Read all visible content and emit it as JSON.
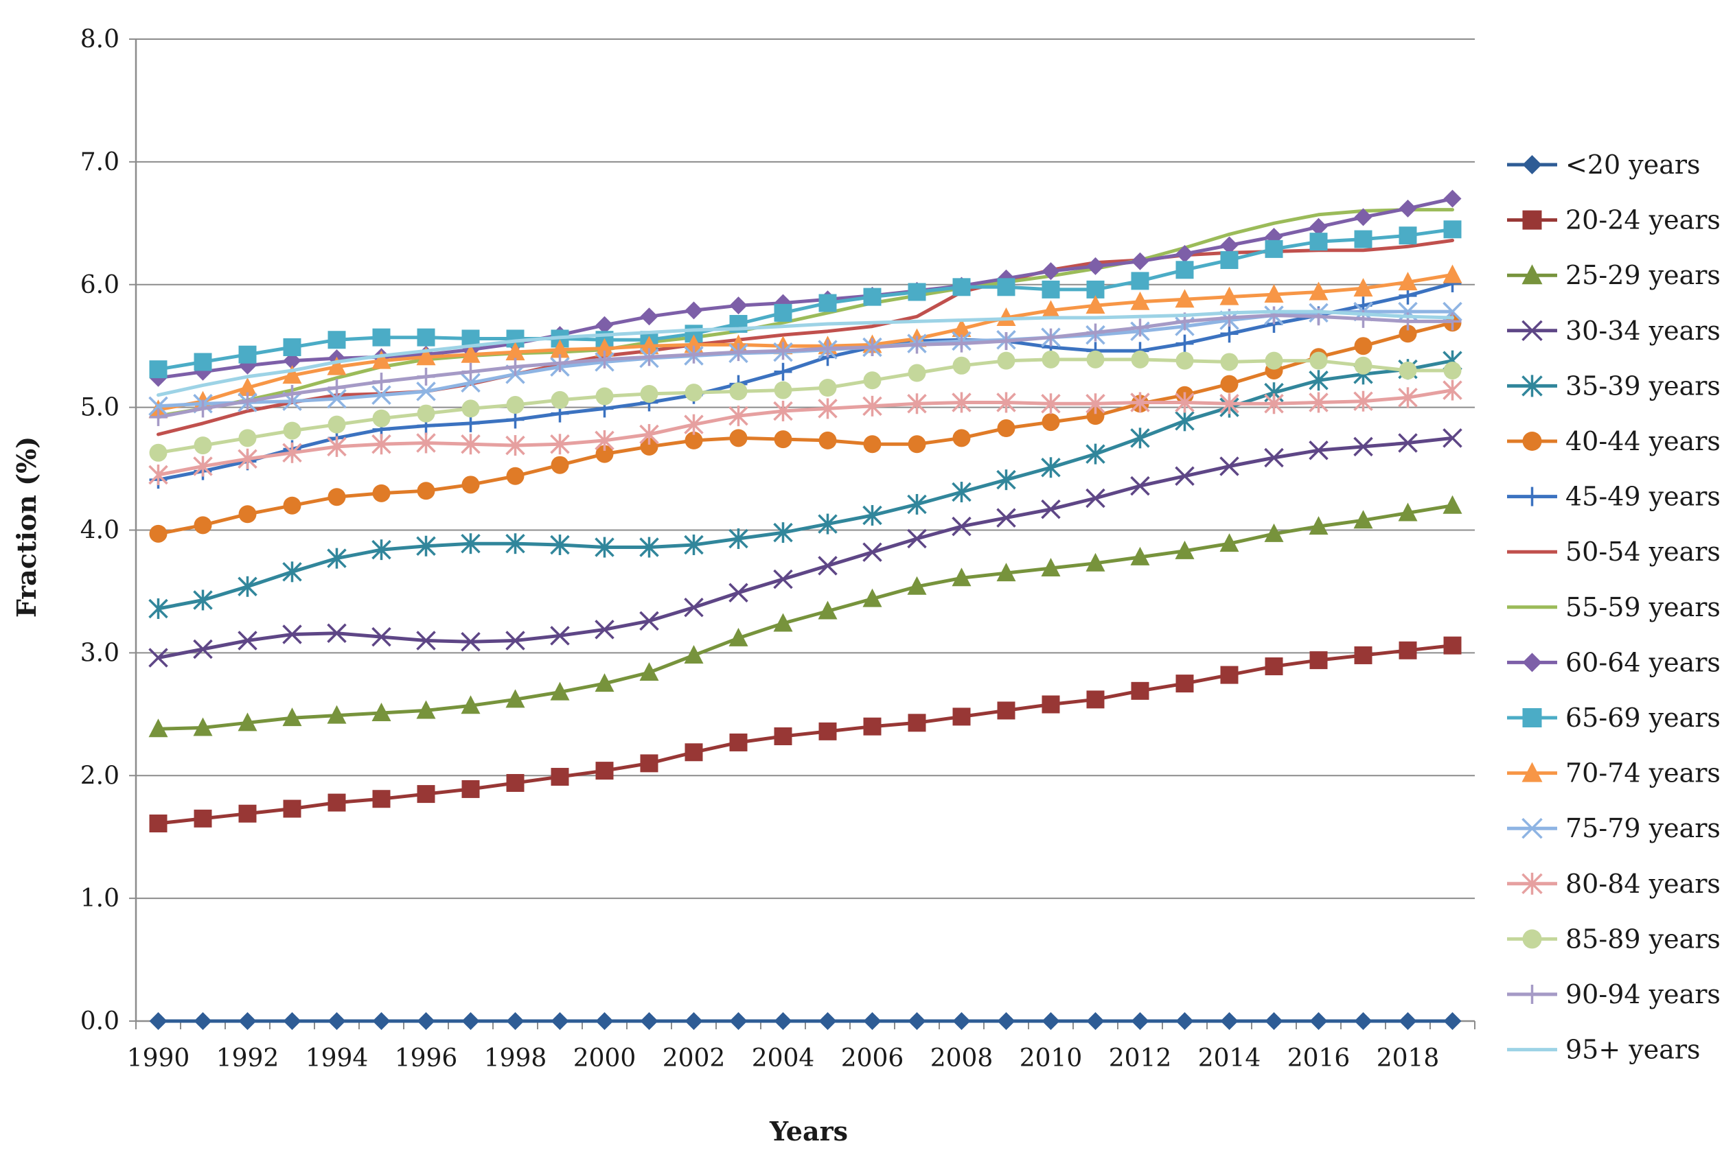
{
  "chart_data": {
    "type": "line",
    "title": "",
    "xlabel": "Years",
    "ylabel": "Fraction (%)",
    "ylim": [
      0,
      8
    ],
    "yticks": [
      "0.0",
      "1.0",
      "2.0",
      "3.0",
      "4.0",
      "5.0",
      "6.0",
      "7.0",
      "8.0"
    ],
    "xticks": [
      "1990",
      "1992",
      "1994",
      "1996",
      "1998",
      "2000",
      "2002",
      "2004",
      "2006",
      "2008",
      "2010",
      "2012",
      "2014",
      "2016",
      "2018"
    ],
    "grid": true,
    "legend": "right",
    "x": [
      1990,
      1991,
      1992,
      1993,
      1994,
      1995,
      1996,
      1997,
      1998,
      1999,
      2000,
      2001,
      2002,
      2003,
      2004,
      2005,
      2006,
      2007,
      2008,
      2009,
      2010,
      2011,
      2012,
      2013,
      2014,
      2015,
      2016,
      2017,
      2018,
      2019
    ],
    "series": [
      {
        "name": "<20 years",
        "color": "#2e5c95",
        "marker": "diamond",
        "values": [
          0,
          0,
          0,
          0,
          0,
          0,
          0,
          0,
          0,
          0,
          0,
          0,
          0,
          0,
          0,
          0,
          0,
          0,
          0,
          0,
          0,
          0,
          0,
          0,
          0,
          0,
          0,
          0,
          0,
          0
        ]
      },
      {
        "name": "20-24 years",
        "color": "#983735",
        "marker": "square",
        "values": [
          1.61,
          1.65,
          1.69,
          1.73,
          1.78,
          1.81,
          1.85,
          1.89,
          1.94,
          1.99,
          2.04,
          2.1,
          2.19,
          2.27,
          2.32,
          2.36,
          2.4,
          2.43,
          2.48,
          2.53,
          2.58,
          2.62,
          2.69,
          2.75,
          2.82,
          2.89,
          2.94,
          2.98,
          3.02,
          3.06
        ]
      },
      {
        "name": "25-29 years",
        "color": "#77933c",
        "marker": "triangle",
        "values": [
          2.38,
          2.39,
          2.43,
          2.47,
          2.49,
          2.51,
          2.53,
          2.57,
          2.62,
          2.68,
          2.75,
          2.84,
          2.98,
          3.12,
          3.24,
          3.34,
          3.44,
          3.54,
          3.61,
          3.65,
          3.69,
          3.73,
          3.78,
          3.83,
          3.89,
          3.97,
          4.03,
          4.08,
          4.14,
          4.2
        ]
      },
      {
        "name": "30-34 years",
        "color": "#5e4686",
        "marker": "x",
        "values": [
          2.96,
          3.03,
          3.1,
          3.15,
          3.16,
          3.13,
          3.1,
          3.09,
          3.1,
          3.14,
          3.19,
          3.26,
          3.37,
          3.49,
          3.6,
          3.71,
          3.82,
          3.93,
          4.03,
          4.1,
          4.17,
          4.26,
          4.36,
          4.44,
          4.52,
          4.59,
          4.65,
          4.68,
          4.71,
          4.75
        ]
      },
      {
        "name": "35-39 years",
        "color": "#31869b",
        "marker": "asterisk",
        "values": [
          3.36,
          3.43,
          3.54,
          3.66,
          3.77,
          3.84,
          3.87,
          3.89,
          3.89,
          3.88,
          3.86,
          3.86,
          3.88,
          3.93,
          3.98,
          4.05,
          4.12,
          4.21,
          4.31,
          4.41,
          4.51,
          4.62,
          4.75,
          4.89,
          5.0,
          5.12,
          5.22,
          5.27,
          5.31,
          5.38
        ]
      },
      {
        "name": "40-44 years",
        "color": "#e07b27",
        "marker": "circle",
        "values": [
          3.97,
          4.04,
          4.13,
          4.2,
          4.27,
          4.3,
          4.32,
          4.37,
          4.44,
          4.53,
          4.62,
          4.68,
          4.73,
          4.75,
          4.74,
          4.73,
          4.7,
          4.7,
          4.75,
          4.83,
          4.88,
          4.93,
          5.03,
          5.1,
          5.19,
          5.3,
          5.41,
          5.5,
          5.6,
          5.69
        ]
      },
      {
        "name": "45-49 years",
        "color": "#3b72c0",
        "marker": "plus",
        "values": [
          4.41,
          4.48,
          4.56,
          4.66,
          4.75,
          4.82,
          4.85,
          4.87,
          4.9,
          4.95,
          4.99,
          5.04,
          5.1,
          5.19,
          5.29,
          5.41,
          5.49,
          5.54,
          5.55,
          5.54,
          5.49,
          5.46,
          5.46,
          5.52,
          5.6,
          5.68,
          5.75,
          5.83,
          5.91,
          6.01
        ]
      },
      {
        "name": "50-54 years",
        "color": "#c0504d",
        "marker": "none",
        "values": [
          4.78,
          4.87,
          4.97,
          5.04,
          5.1,
          5.11,
          5.13,
          5.19,
          5.27,
          5.35,
          5.42,
          5.46,
          5.51,
          5.55,
          5.59,
          5.62,
          5.66,
          5.74,
          5.94,
          6.03,
          6.12,
          6.18,
          6.2,
          6.24,
          6.26,
          6.27,
          6.28,
          6.28,
          6.31,
          6.36
        ]
      },
      {
        "name": "55-59 years",
        "color": "#9bbb59",
        "marker": "none",
        "values": [
          4.93,
          4.99,
          5.06,
          5.14,
          5.24,
          5.33,
          5.39,
          5.42,
          5.44,
          5.45,
          5.47,
          5.53,
          5.57,
          5.62,
          5.69,
          5.77,
          5.85,
          5.91,
          5.97,
          6.02,
          6.07,
          6.13,
          6.2,
          6.3,
          6.41,
          6.5,
          6.57,
          6.6,
          6.61,
          6.61
        ]
      },
      {
        "name": "60-64 years",
        "color": "#7d5fa8",
        "marker": "diamond",
        "values": [
          5.24,
          5.29,
          5.34,
          5.38,
          5.4,
          5.41,
          5.43,
          5.47,
          5.52,
          5.59,
          5.67,
          5.74,
          5.79,
          5.83,
          5.85,
          5.88,
          5.91,
          5.95,
          5.99,
          6.05,
          6.11,
          6.15,
          6.19,
          6.25,
          6.32,
          6.39,
          6.47,
          6.55,
          6.62,
          6.7
        ]
      },
      {
        "name": "65-69 years",
        "color": "#4bacc6",
        "marker": "square",
        "values": [
          5.31,
          5.37,
          5.43,
          5.49,
          5.55,
          5.57,
          5.57,
          5.56,
          5.56,
          5.56,
          5.55,
          5.55,
          5.6,
          5.68,
          5.77,
          5.85,
          5.9,
          5.94,
          5.98,
          5.98,
          5.96,
          5.96,
          6.03,
          6.12,
          6.2,
          6.29,
          6.35,
          6.37,
          6.4,
          6.45
        ]
      },
      {
        "name": "70-74 years",
        "color": "#f79646",
        "marker": "triangle",
        "values": [
          4.98,
          5.05,
          5.16,
          5.26,
          5.33,
          5.38,
          5.41,
          5.43,
          5.45,
          5.47,
          5.48,
          5.5,
          5.51,
          5.51,
          5.5,
          5.5,
          5.51,
          5.56,
          5.64,
          5.73,
          5.79,
          5.83,
          5.86,
          5.88,
          5.9,
          5.92,
          5.94,
          5.97,
          6.02,
          6.08
        ]
      },
      {
        "name": "75-79 years",
        "color": "#8eb4e3",
        "marker": "x",
        "values": [
          5.01,
          5.03,
          5.04,
          5.05,
          5.07,
          5.1,
          5.13,
          5.2,
          5.27,
          5.33,
          5.37,
          5.4,
          5.42,
          5.44,
          5.45,
          5.47,
          5.49,
          5.52,
          5.54,
          5.55,
          5.57,
          5.59,
          5.62,
          5.66,
          5.71,
          5.75,
          5.77,
          5.78,
          5.78,
          5.78
        ]
      },
      {
        "name": "80-84 years",
        "color": "#e6a0a0",
        "marker": "asterisk",
        "values": [
          4.45,
          4.52,
          4.58,
          4.63,
          4.68,
          4.7,
          4.71,
          4.7,
          4.69,
          4.7,
          4.73,
          4.78,
          4.86,
          4.93,
          4.97,
          4.99,
          5.01,
          5.03,
          5.04,
          5.04,
          5.03,
          5.03,
          5.04,
          5.04,
          5.03,
          5.03,
          5.04,
          5.05,
          5.08,
          5.14
        ]
      },
      {
        "name": "85-89 years",
        "color": "#c4d79b",
        "marker": "circle",
        "values": [
          4.63,
          4.69,
          4.75,
          4.81,
          4.86,
          4.91,
          4.95,
          4.99,
          5.02,
          5.06,
          5.09,
          5.11,
          5.12,
          5.13,
          5.14,
          5.16,
          5.22,
          5.28,
          5.34,
          5.38,
          5.39,
          5.39,
          5.39,
          5.38,
          5.37,
          5.38,
          5.38,
          5.34,
          5.3,
          5.3
        ]
      },
      {
        "name": "90-94 years",
        "color": "#a59ac6",
        "marker": "plus",
        "values": [
          4.92,
          4.99,
          5.05,
          5.11,
          5.16,
          5.21,
          5.25,
          5.29,
          5.33,
          5.36,
          5.39,
          5.41,
          5.43,
          5.45,
          5.46,
          5.48,
          5.49,
          5.51,
          5.52,
          5.54,
          5.57,
          5.61,
          5.65,
          5.7,
          5.73,
          5.75,
          5.74,
          5.72,
          5.7,
          5.7
        ]
      },
      {
        "name": "95+ years",
        "color": "#9dd3e6",
        "marker": "none",
        "values": [
          5.1,
          5.18,
          5.25,
          5.3,
          5.37,
          5.42,
          5.46,
          5.5,
          5.54,
          5.57,
          5.59,
          5.61,
          5.63,
          5.64,
          5.66,
          5.68,
          5.69,
          5.7,
          5.71,
          5.72,
          5.73,
          5.73,
          5.74,
          5.75,
          5.77,
          5.78,
          5.78,
          5.76,
          5.74,
          5.73
        ]
      }
    ]
  }
}
